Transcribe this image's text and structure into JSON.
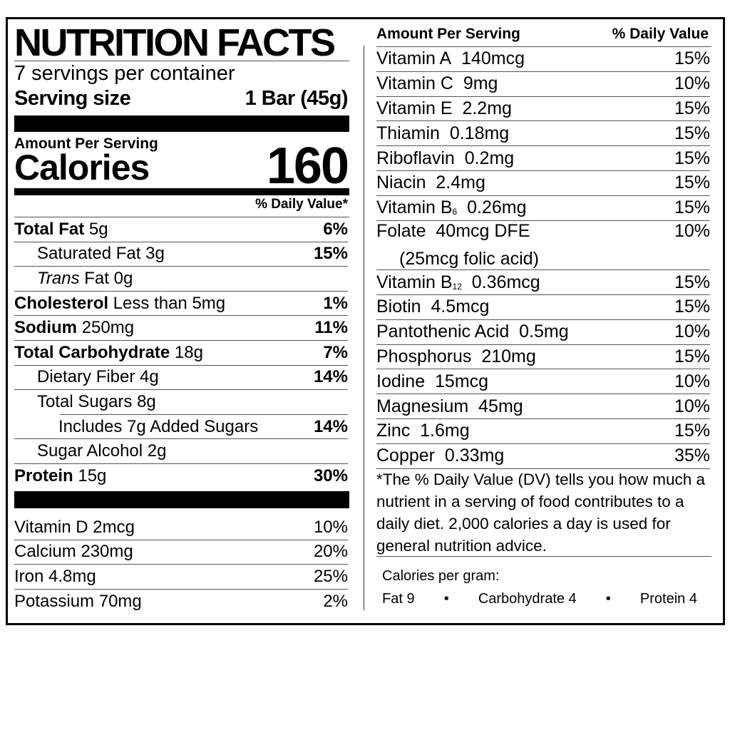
{
  "header": {
    "title": "NUTRITION FACTS",
    "servings": "7 servings per container",
    "serving_size_label": "Serving size",
    "serving_size_value": "1 Bar (45g)",
    "amount_per_serving": "Amount Per Serving",
    "calories_label": "Calories",
    "calories_value": "160",
    "daily_value_header": "% Daily Value*"
  },
  "nutrients": [
    {
      "name": "Total Fat",
      "amount": "5g",
      "dv": "6%"
    },
    {
      "name": "Saturated Fat",
      "amount": "3g",
      "dv": "15%"
    },
    {
      "name": "Trans",
      "amount": "Fat 0g",
      "dv": ""
    },
    {
      "name": "Cholesterol",
      "amount": "Less than 5mg",
      "dv": "1%"
    },
    {
      "name": "Sodium",
      "amount": "250mg",
      "dv": "11%"
    },
    {
      "name": "Total Carbohydrate",
      "amount": "18g",
      "dv": "7%"
    },
    {
      "name": "Dietary Fiber",
      "amount": "4g",
      "dv": "14%"
    },
    {
      "name": "Total Sugars",
      "amount": "8g",
      "dv": ""
    },
    {
      "name": "Includes 7g Added Sugars",
      "amount": "",
      "dv": "14%"
    },
    {
      "name": "Sugar Alcohol",
      "amount": "2g",
      "dv": ""
    },
    {
      "name": "Protein",
      "amount": "15g",
      "dv": "30%"
    }
  ],
  "minerals_left": [
    {
      "name": "Vitamin D",
      "amount": "2mcg",
      "dv": "10%"
    },
    {
      "name": "Calcium",
      "amount": "230mg",
      "dv": "20%"
    },
    {
      "name": "Iron",
      "amount": "4.8mg",
      "dv": "25%"
    },
    {
      "name": "Potassium",
      "amount": "70mg",
      "dv": "2%"
    }
  ],
  "right": {
    "amount_header": "Amount Per Serving",
    "dv_header": "% Daily Value",
    "items": [
      {
        "name": "Vitamin A",
        "sub": "",
        "amount": "140mcg",
        "dv": "15%"
      },
      {
        "name": "Vitamin C",
        "sub": "",
        "amount": "9mg",
        "dv": "10%"
      },
      {
        "name": "Vitamin E",
        "sub": "",
        "amount": "2.2mg",
        "dv": "15%"
      },
      {
        "name": "Thiamin",
        "sub": "",
        "amount": "0.18mg",
        "dv": "15%"
      },
      {
        "name": "Riboflavin",
        "sub": "",
        "amount": "0.2mg",
        "dv": "15%"
      },
      {
        "name": "Niacin",
        "sub": "",
        "amount": "2.4mg",
        "dv": "15%"
      },
      {
        "name": "Vitamin B",
        "sub": "6",
        "amount": "0.26mg",
        "dv": "15%"
      },
      {
        "name": "Folate",
        "sub": "",
        "amount": "40mcg DFE",
        "dv": "10%",
        "note": "(25mcg folic acid)"
      },
      {
        "name": "Vitamin B",
        "sub": "12",
        "amount": "0.36mcg",
        "dv": "15%"
      },
      {
        "name": "Biotin",
        "sub": "",
        "amount": "4.5mcg",
        "dv": "15%"
      },
      {
        "name": "Pantothenic Acid",
        "sub": "",
        "amount": "0.5mg",
        "dv": "10%"
      },
      {
        "name": "Phosphorus",
        "sub": "",
        "amount": "210mg",
        "dv": "15%"
      },
      {
        "name": "Iodine",
        "sub": "",
        "amount": "15mcg",
        "dv": "10%"
      },
      {
        "name": "Magnesium",
        "sub": "",
        "amount": "45mg",
        "dv": "10%"
      },
      {
        "name": "Zinc",
        "sub": "",
        "amount": "1.6mg",
        "dv": "15%"
      },
      {
        "name": "Copper",
        "sub": "",
        "amount": "0.33mg",
        "dv": "35%"
      }
    ],
    "footnote": "*The % Daily Value (DV) tells you how much a nutrient in a serving of food contributes to a daily diet. 2,000 calories a day is used for general nutrition advice.",
    "calories_per_gram": "Calories per gram:",
    "cpg_items": [
      "Fat 9",
      "Carbohydrate 4",
      "Protein 4"
    ],
    "bullet": "•"
  }
}
